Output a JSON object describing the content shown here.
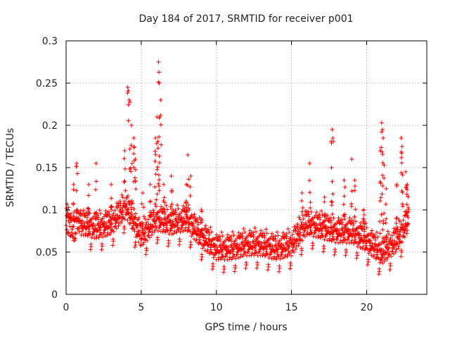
{
  "chart_data": {
    "type": "scatter",
    "title": "Day 184 of 2017, SRMTID for receiver p001",
    "xlabel": "GPS time / hours",
    "ylabel": "SRMTID / TECUs",
    "xlim": [
      0,
      24
    ],
    "ylim": [
      0,
      0.3
    ],
    "xticks": [
      0,
      5,
      10,
      15,
      20
    ],
    "xtick_labels": [
      "0",
      "5",
      "10",
      "15",
      "20"
    ],
    "yticks": [
      0,
      0.05,
      0.1,
      0.15,
      0.2,
      0.25,
      0.3
    ],
    "ytick_labels": [
      "0",
      "0.05",
      "0.1",
      "0.15",
      "0.2",
      "0.25",
      "0.3"
    ],
    "grid": true,
    "marker": "+",
    "color": "#ff0000",
    "x_extent_hours": [
      0,
      22.8
    ],
    "trend": [
      {
        "x": 0.0,
        "y": 0.085
      },
      {
        "x": 1.0,
        "y": 0.08
      },
      {
        "x": 2.0,
        "y": 0.075
      },
      {
        "x": 3.0,
        "y": 0.08
      },
      {
        "x": 4.0,
        "y": 0.1
      },
      {
        "x": 5.0,
        "y": 0.065
      },
      {
        "x": 6.0,
        "y": 0.085
      },
      {
        "x": 7.0,
        "y": 0.08
      },
      {
        "x": 8.0,
        "y": 0.085
      },
      {
        "x": 9.0,
        "y": 0.065
      },
      {
        "x": 10.0,
        "y": 0.05
      },
      {
        "x": 11.0,
        "y": 0.05
      },
      {
        "x": 12.0,
        "y": 0.055
      },
      {
        "x": 13.0,
        "y": 0.055
      },
      {
        "x": 14.0,
        "y": 0.05
      },
      {
        "x": 15.0,
        "y": 0.055
      },
      {
        "x": 16.0,
        "y": 0.08
      },
      {
        "x": 17.0,
        "y": 0.075
      },
      {
        "x": 18.0,
        "y": 0.07
      },
      {
        "x": 19.0,
        "y": 0.07
      },
      {
        "x": 20.0,
        "y": 0.06
      },
      {
        "x": 21.0,
        "y": 0.045
      },
      {
        "x": 22.0,
        "y": 0.06
      },
      {
        "x": 22.8,
        "y": 0.085
      }
    ],
    "spikes": [
      {
        "x": 0.5,
        "y": 0.13
      },
      {
        "x": 0.7,
        "y": 0.155
      },
      {
        "x": 1.5,
        "y": 0.13
      },
      {
        "x": 2.0,
        "y": 0.155
      },
      {
        "x": 3.0,
        "y": 0.13
      },
      {
        "x": 3.9,
        "y": 0.17
      },
      {
        "x": 4.1,
        "y": 0.245
      },
      {
        "x": 4.2,
        "y": 0.23
      },
      {
        "x": 4.35,
        "y": 0.2
      },
      {
        "x": 4.5,
        "y": 0.185
      },
      {
        "x": 4.6,
        "y": 0.16
      },
      {
        "x": 5.1,
        "y": 0.12
      },
      {
        "x": 5.6,
        "y": 0.13
      },
      {
        "x": 5.95,
        "y": 0.185
      },
      {
        "x": 6.05,
        "y": 0.21
      },
      {
        "x": 6.15,
        "y": 0.275
      },
      {
        "x": 6.2,
        "y": 0.25
      },
      {
        "x": 6.3,
        "y": 0.23
      },
      {
        "x": 6.5,
        "y": 0.13
      },
      {
        "x": 7.0,
        "y": 0.14
      },
      {
        "x": 8.0,
        "y": 0.13
      },
      {
        "x": 8.1,
        "y": 0.165
      },
      {
        "x": 8.3,
        "y": 0.14
      },
      {
        "x": 9.0,
        "y": 0.1
      },
      {
        "x": 15.7,
        "y": 0.12
      },
      {
        "x": 16.2,
        "y": 0.155
      },
      {
        "x": 17.2,
        "y": 0.115
      },
      {
        "x": 17.7,
        "y": 0.195
      },
      {
        "x": 17.75,
        "y": 0.185
      },
      {
        "x": 18.5,
        "y": 0.135
      },
      {
        "x": 19.0,
        "y": 0.16
      },
      {
        "x": 19.2,
        "y": 0.135
      },
      {
        "x": 19.8,
        "y": 0.1
      },
      {
        "x": 20.9,
        "y": 0.17
      },
      {
        "x": 21.0,
        "y": 0.203
      },
      {
        "x": 21.05,
        "y": 0.195
      },
      {
        "x": 21.1,
        "y": 0.185
      },
      {
        "x": 21.3,
        "y": 0.125
      },
      {
        "x": 22.0,
        "y": 0.13
      },
      {
        "x": 22.3,
        "y": 0.185
      },
      {
        "x": 22.35,
        "y": 0.175
      },
      {
        "x": 22.6,
        "y": 0.145
      },
      {
        "x": 22.7,
        "y": 0.13
      }
    ]
  }
}
